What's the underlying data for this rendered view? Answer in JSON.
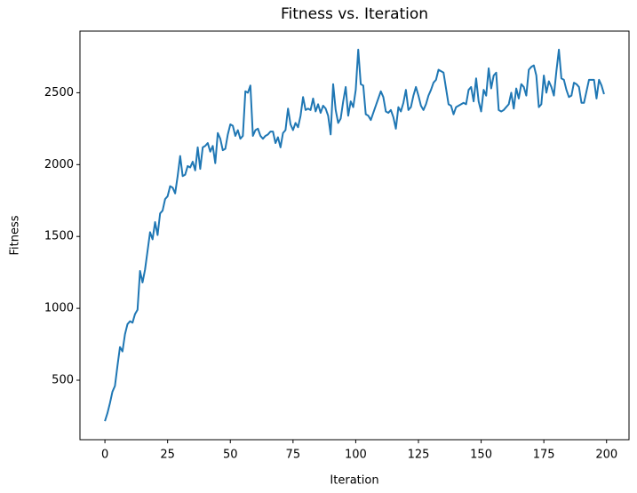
{
  "chart_data": {
    "type": "line",
    "title": "Fitness vs. Iteration",
    "x_label": "Iteration",
    "y_label": "Fitness",
    "x": [
      0,
      1,
      2,
      3,
      4,
      5,
      6,
      7,
      8,
      9,
      10,
      11,
      12,
      13,
      14,
      15,
      16,
      17,
      18,
      19,
      20,
      21,
      22,
      23,
      24,
      25,
      26,
      27,
      28,
      29,
      30,
      31,
      32,
      33,
      34,
      35,
      36,
      37,
      38,
      39,
      40,
      41,
      42,
      43,
      44,
      45,
      46,
      47,
      48,
      49,
      50,
      51,
      52,
      53,
      54,
      55,
      56,
      57,
      58,
      59,
      60,
      61,
      62,
      63,
      64,
      65,
      66,
      67,
      68,
      69,
      70,
      71,
      72,
      73,
      74,
      75,
      76,
      77,
      78,
      79,
      80,
      81,
      82,
      83,
      84,
      85,
      86,
      87,
      88,
      89,
      90,
      91,
      92,
      93,
      94,
      95,
      96,
      97,
      98,
      99,
      100,
      101,
      102,
      103,
      104,
      105,
      106,
      107,
      108,
      109,
      110,
      111,
      112,
      113,
      114,
      115,
      116,
      117,
      118,
      119,
      120,
      121,
      122,
      123,
      124,
      125,
      126,
      127,
      128,
      129,
      130,
      131,
      132,
      133,
      134,
      135,
      136,
      137,
      138,
      139,
      140,
      141,
      142,
      143,
      144,
      145,
      146,
      147,
      148,
      149,
      150,
      151,
      152,
      153,
      154,
      155,
      156,
      157,
      158,
      159,
      160,
      161,
      162,
      163,
      164,
      165,
      166,
      167,
      168,
      169,
      170,
      171,
      172,
      173,
      174,
      175,
      176,
      177,
      178,
      179,
      180,
      181,
      182,
      183,
      184,
      185,
      186,
      187,
      188,
      189,
      190,
      191,
      192,
      193,
      194,
      195,
      196,
      197,
      198,
      199
    ],
    "series": [
      {
        "name": "Fitness",
        "color": "#1f77b4",
        "values": [
          215,
          270,
          340,
          420,
          460,
          600,
          730,
          700,
          820,
          890,
          910,
          900,
          960,
          990,
          1260,
          1180,
          1270,
          1400,
          1530,
          1480,
          1600,
          1510,
          1660,
          1680,
          1760,
          1780,
          1850,
          1840,
          1800,
          1920,
          2060,
          1920,
          1930,
          1990,
          1980,
          2020,
          1960,
          2120,
          1970,
          2120,
          2130,
          2150,
          2090,
          2130,
          2010,
          2220,
          2180,
          2100,
          2110,
          2210,
          2280,
          2270,
          2200,
          2240,
          2180,
          2200,
          2510,
          2500,
          2550,
          2200,
          2240,
          2250,
          2200,
          2180,
          2200,
          2210,
          2230,
          2230,
          2150,
          2190,
          2120,
          2220,
          2240,
          2390,
          2280,
          2240,
          2290,
          2260,
          2340,
          2470,
          2380,
          2390,
          2380,
          2460,
          2370,
          2420,
          2360,
          2410,
          2390,
          2340,
          2210,
          2560,
          2380,
          2290,
          2320,
          2440,
          2540,
          2340,
          2440,
          2400,
          2520,
          2800,
          2560,
          2550,
          2350,
          2340,
          2310,
          2360,
          2410,
          2460,
          2510,
          2470,
          2370,
          2360,
          2380,
          2330,
          2250,
          2400,
          2370,
          2430,
          2520,
          2380,
          2400,
          2480,
          2540,
          2480,
          2410,
          2380,
          2420,
          2480,
          2520,
          2570,
          2590,
          2660,
          2650,
          2640,
          2530,
          2420,
          2410,
          2350,
          2400,
          2410,
          2420,
          2430,
          2420,
          2520,
          2540,
          2440,
          2600,
          2440,
          2370,
          2520,
          2480,
          2670,
          2530,
          2620,
          2640,
          2380,
          2370,
          2380,
          2400,
          2420,
          2500,
          2390,
          2530,
          2460,
          2560,
          2540,
          2480,
          2660,
          2680,
          2690,
          2620,
          2400,
          2420,
          2620,
          2500,
          2580,
          2540,
          2480,
          2650,
          2800,
          2600,
          2590,
          2520,
          2470,
          2480,
          2570,
          2560,
          2540,
          2430,
          2430,
          2510,
          2590,
          2590,
          2590,
          2460,
          2590,
          2550,
          2490
        ]
      }
    ],
    "xlim": [
      -9.95,
      208.95
    ],
    "xticks": [
      0,
      25,
      50,
      75,
      100,
      125,
      150,
      175,
      200
    ],
    "ylim": [
      86,
      2929
    ],
    "yticks": [
      500,
      1000,
      1500,
      2000,
      2500
    ],
    "grid": false
  }
}
